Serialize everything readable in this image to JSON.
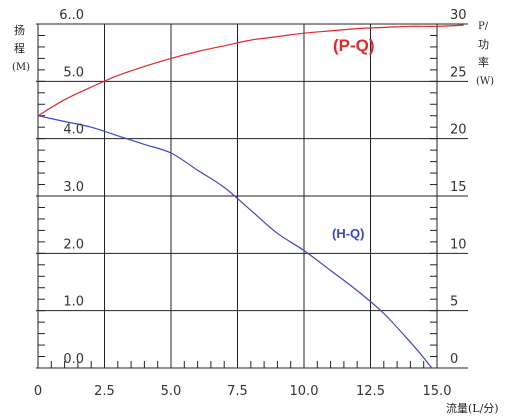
{
  "chart_data": {
    "type": "line",
    "xlabel": "流量(L/分)",
    "ylabel_left": [
      "扬",
      "程",
      "(M)"
    ],
    "ylabel_right": [
      "P/",
      "功",
      "率",
      "(W)"
    ],
    "xlim": [
      0,
      15
    ],
    "ylim_left": [
      0,
      6
    ],
    "ylim_right": [
      0,
      30
    ],
    "grid": true,
    "x_ticks": [
      "0",
      "2.5",
      "5.0",
      "7.5",
      "10.0",
      "12.5",
      "15.0"
    ],
    "y_left_ticks": [
      "0.0",
      "1.0",
      "2.0",
      "3.0",
      "4.0",
      "5.0",
      "6..0"
    ],
    "y_right_ticks": [
      "0",
      "5",
      "10",
      "15",
      "20",
      "25",
      "30"
    ],
    "series": [
      {
        "name": "(P-Q)",
        "axis": "right",
        "color": "#e8262b",
        "x": [
          0,
          1,
          2,
          3,
          4,
          5,
          6,
          7,
          8,
          9,
          10,
          11,
          12,
          13,
          14,
          15,
          16
        ],
        "y": [
          22.0,
          23.4,
          24.5,
          25.5,
          26.3,
          27.0,
          27.6,
          28.1,
          28.6,
          28.9,
          29.2,
          29.4,
          29.6,
          29.7,
          29.8,
          29.8,
          29.9
        ]
      },
      {
        "name": "(H-Q)",
        "axis": "left",
        "color": "#3d46c8",
        "x": [
          0,
          1,
          2,
          3,
          4,
          5,
          6,
          7,
          8,
          9,
          10,
          11,
          12,
          13,
          14,
          14.5,
          14.8
        ],
        "y": [
          4.4,
          4.3,
          4.2,
          4.05,
          3.9,
          3.75,
          3.45,
          3.15,
          2.75,
          2.35,
          2.05,
          1.7,
          1.35,
          0.95,
          0.45,
          0.18,
          0.0
        ]
      }
    ]
  }
}
